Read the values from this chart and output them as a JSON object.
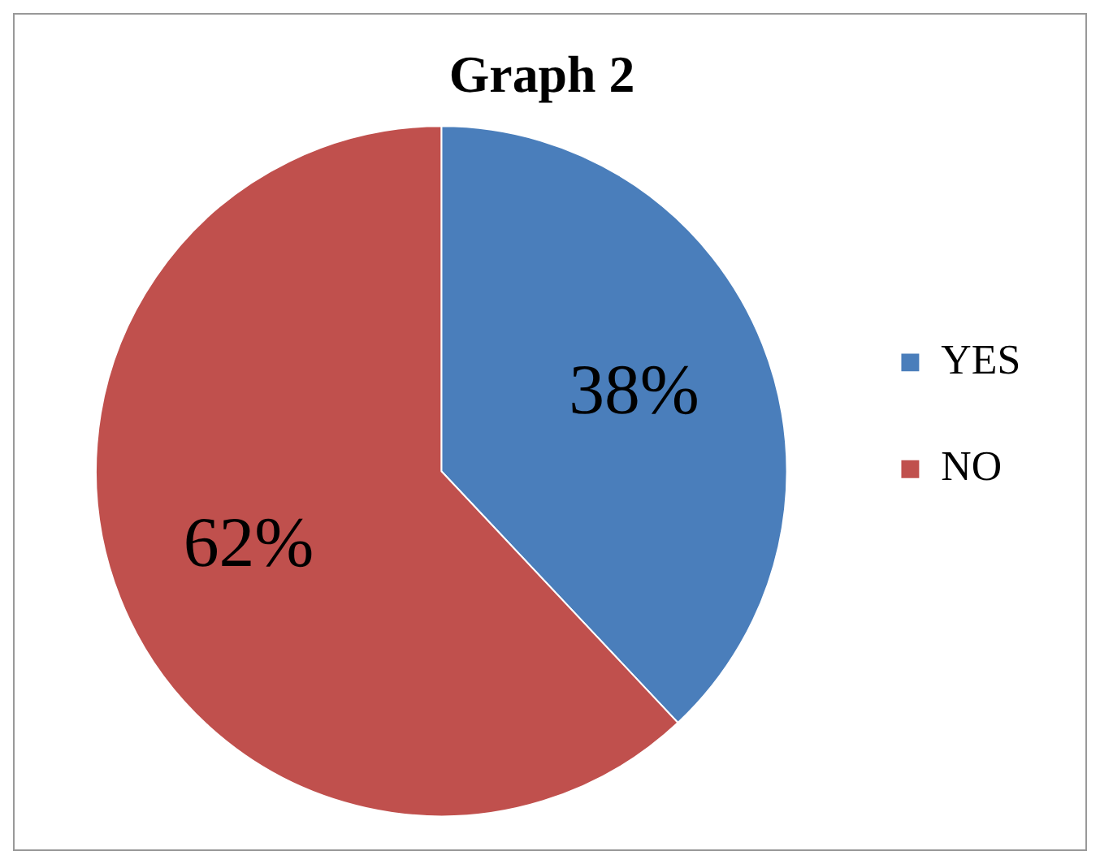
{
  "chart_data": {
    "type": "pie",
    "title": "Graph 2",
    "categories": [
      "YES",
      "NO"
    ],
    "values": [
      38,
      62
    ],
    "colors": [
      "#4a7ebb",
      "#c0504d"
    ],
    "value_labels": [
      "38%",
      "62%"
    ],
    "legend": "right"
  }
}
